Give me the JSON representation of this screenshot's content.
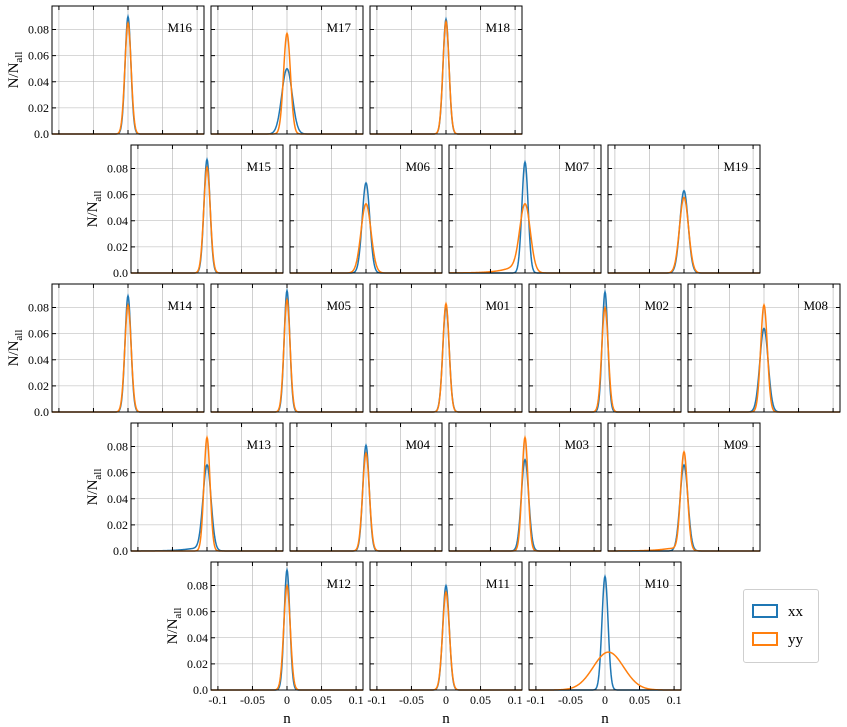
{
  "chart_data": {
    "type": "line",
    "xlabel": "n",
    "ylabel_main": "N/N",
    "ylabel_sub": "all",
    "xlim": [
      -0.11,
      0.11
    ],
    "ylim": [
      0,
      0.098
    ],
    "xticks": [
      -0.1,
      -0.05,
      0,
      0.05,
      0.1
    ],
    "xtick_labels": [
      "-0.1",
      "-0.05",
      "0",
      "0.05",
      "0.1"
    ],
    "yticks": [
      0,
      0.02,
      0.04,
      0.06,
      0.08
    ],
    "ytick_labels": [
      "0.0",
      "0.02",
      "0.04",
      "0.06",
      "0.08"
    ],
    "grid": true,
    "legend_placement": "bottom-right",
    "series_colors": {
      "xx": "#1f77b4",
      "yy": "#ff7f0e"
    },
    "legend": [
      {
        "key": "xx",
        "label": "xx",
        "color": "#1f77b4"
      },
      {
        "key": "yy",
        "label": "yy",
        "color": "#ff7f0e"
      }
    ],
    "panels": [
      {
        "label": "M16",
        "row": 0,
        "col": 1,
        "xx": {
          "peak": 0.09,
          "width": 0.0042
        },
        "yy": {
          "peak": 0.085,
          "width": 0.0045
        }
      },
      {
        "label": "M17",
        "row": 0,
        "col": 2,
        "xx": {
          "peak": 0.05,
          "width": 0.0075
        },
        "yy": {
          "peak": 0.077,
          "width": 0.005
        }
      },
      {
        "label": "M18",
        "row": 0,
        "col": 3,
        "xx": {
          "peak": 0.088,
          "width": 0.0043
        },
        "yy": {
          "peak": 0.086,
          "width": 0.0044
        }
      },
      {
        "label": "M15",
        "row": 1,
        "col": 0,
        "xx": {
          "peak": 0.087,
          "width": 0.0044
        },
        "yy": {
          "peak": 0.081,
          "width": 0.0047
        }
      },
      {
        "label": "M06",
        "row": 1,
        "col": 1,
        "xx": {
          "peak": 0.069,
          "width": 0.0055
        },
        "yy": {
          "peak": 0.053,
          "width": 0.0072
        }
      },
      {
        "label": "M07",
        "row": 1,
        "col": 2,
        "xx": {
          "peak": 0.085,
          "width": 0.0045
        },
        "yy": {
          "peak": 0.053,
          "width": 0.0075,
          "tail": 0.012
        }
      },
      {
        "label": "M19",
        "row": 1,
        "col": 3,
        "xx": {
          "peak": 0.063,
          "width": 0.006
        },
        "yy": {
          "peak": 0.058,
          "width": 0.0065
        }
      },
      {
        "label": "M14",
        "row": 2,
        "col": 0,
        "xx": {
          "peak": 0.089,
          "width": 0.0043
        },
        "yy": {
          "peak": 0.082,
          "width": 0.0046
        }
      },
      {
        "label": "M05",
        "row": 2,
        "col": 1,
        "xx": {
          "peak": 0.093,
          "width": 0.0041
        },
        "yy": {
          "peak": 0.086,
          "width": 0.0044
        }
      },
      {
        "label": "M01",
        "row": 2,
        "col": 2,
        "xx": {
          "peak": 0.081,
          "width": 0.0046
        },
        "yy": {
          "peak": 0.083,
          "width": 0.0045
        }
      },
      {
        "label": "M02",
        "row": 2,
        "col": 3,
        "xx": {
          "peak": 0.092,
          "width": 0.0041
        },
        "yy": {
          "peak": 0.08,
          "width": 0.0047
        }
      },
      {
        "label": "M08",
        "row": 2,
        "col": 4,
        "xx": {
          "peak": 0.064,
          "width": 0.006
        },
        "yy": {
          "peak": 0.082,
          "width": 0.0048
        }
      },
      {
        "label": "M13",
        "row": 3,
        "col": 0,
        "xx": {
          "peak": 0.066,
          "width": 0.0058,
          "tail": 0.006
        },
        "yy": {
          "peak": 0.087,
          "width": 0.0044
        }
      },
      {
        "label": "M04",
        "row": 3,
        "col": 1,
        "xx": {
          "peak": 0.081,
          "width": 0.0046
        },
        "yy": {
          "peak": 0.075,
          "width": 0.0049
        }
      },
      {
        "label": "M03",
        "row": 3,
        "col": 2,
        "xx": {
          "peak": 0.07,
          "width": 0.0053
        },
        "yy": {
          "peak": 0.087,
          "width": 0.0044
        }
      },
      {
        "label": "M09",
        "row": 3,
        "col": 3,
        "xx": {
          "peak": 0.066,
          "width": 0.0057
        },
        "yy": {
          "peak": 0.076,
          "width": 0.0049,
          "tail": 0.006
        }
      },
      {
        "label": "M12",
        "row": 4,
        "col": 1,
        "xx": {
          "peak": 0.092,
          "width": 0.0041
        },
        "yy": {
          "peak": 0.08,
          "width": 0.0047
        }
      },
      {
        "label": "M11",
        "row": 4,
        "col": 2,
        "xx": {
          "peak": 0.08,
          "width": 0.0047
        },
        "yy": {
          "peak": 0.075,
          "width": 0.0049
        }
      },
      {
        "label": "M10",
        "row": 4,
        "col": 3,
        "xx": {
          "peak": 0.087,
          "width": 0.0044
        },
        "yy": {
          "peak": 0.029,
          "width": 0.022,
          "shift": 0.005
        }
      }
    ]
  }
}
